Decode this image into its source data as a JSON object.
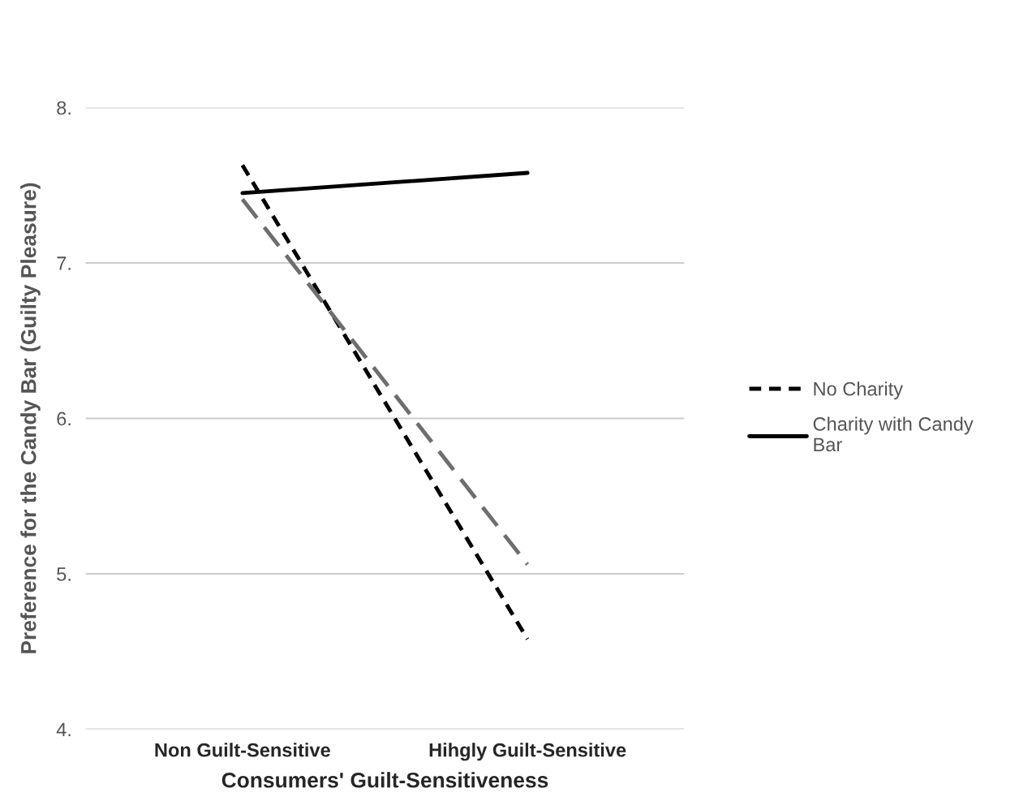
{
  "chart_data": {
    "type": "line",
    "xlabel": "Consumers' Guilt-Sensitiveness",
    "ylabel": "Preference for the Candy Bar (Guilty Pleasure)",
    "categories": [
      "Non Guilt-Sensitive",
      "Hihgly Guilt-Sensitive"
    ],
    "series": [
      {
        "name": "No Charity",
        "color": "#000000",
        "values": [
          7.63,
          4.58
        ],
        "line_style": "dashed"
      },
      {
        "name": "Charity with Candy Bar",
        "color": "#000000",
        "values": [
          7.45,
          7.58
        ],
        "line_style": "solid"
      },
      {
        "color": "#6e6e6e",
        "values": [
          7.41,
          5.06
        ],
        "line_style": "longdash"
      }
    ],
    "ylim": [
      4,
      8
    ],
    "yticks": [
      {
        "value": 4,
        "label": "4."
      },
      {
        "value": 5,
        "label": "5."
      },
      {
        "value": 6,
        "label": "6."
      },
      {
        "value": 7,
        "label": "7."
      },
      {
        "value": 8,
        "label": "8."
      }
    ],
    "grid": "y",
    "legend": "right",
    "marker": "none"
  }
}
